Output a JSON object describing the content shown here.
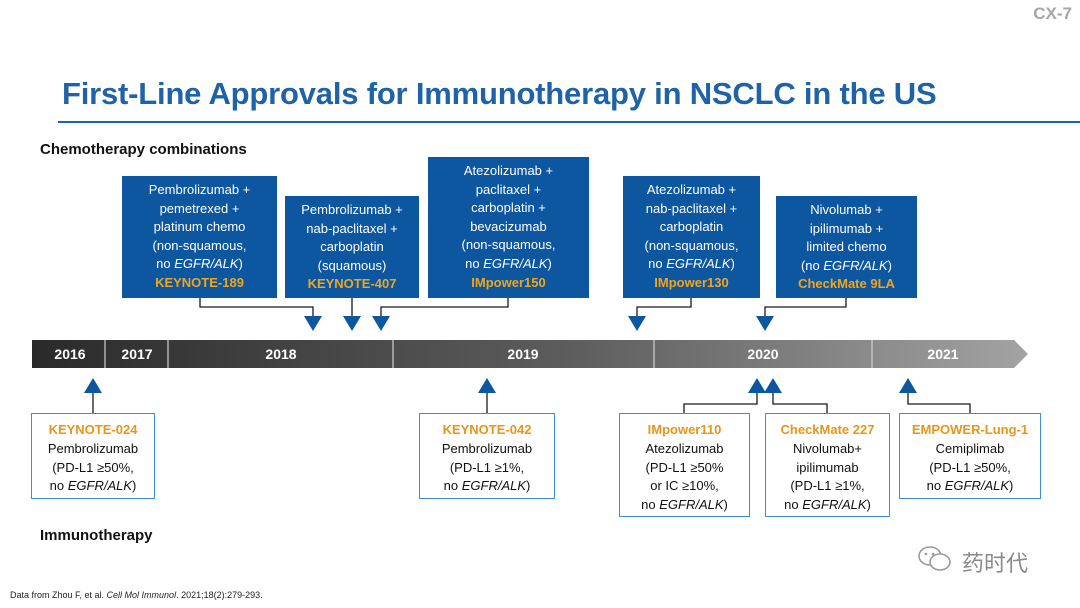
{
  "slide_id": "CX-7",
  "title": "First-Line Approvals for Immunotherapy in NSCLC in the US",
  "sections": {
    "chemo": "Chemotherapy combinations",
    "immuno": "Immunotherapy"
  },
  "timeline": {
    "years": [
      "2016",
      "2017",
      "2018",
      "2019",
      "2020",
      "2021"
    ]
  },
  "chemo_boxes": [
    {
      "lines": [
        "Pembrolizumab +",
        "pemetrexed +",
        "platinum chemo",
        "(non-squamous,",
        "no |EGFR/ALK|)"
      ],
      "trial": "KEYNOTE-189"
    },
    {
      "lines": [
        "Pembrolizumab +",
        "nab-paclitaxel +",
        "carboplatin",
        "(squamous)"
      ],
      "trial": "KEYNOTE-407"
    },
    {
      "lines": [
        "Atezolizumab +",
        "paclitaxel +",
        "carboplatin +",
        "bevacizumab",
        "(non-squamous,",
        "no |EGFR/ALK|)"
      ],
      "trial": "IMpower150"
    },
    {
      "lines": [
        "Atezolizumab +",
        "nab-paclitaxel +",
        "carboplatin",
        "(non-squamous,",
        "no |EGFR/ALK|)"
      ],
      "trial": "IMpower130"
    },
    {
      "lines": [
        "Nivolumab +",
        "ipilimumab +",
        "limited chemo",
        "(no |EGFR/ALK|)"
      ],
      "trial": "CheckMate 9LA"
    }
  ],
  "immuno_boxes": [
    {
      "trial": "KEYNOTE-024",
      "lines": [
        "Pembrolizumab",
        "(PD-L1 ≥50%,",
        "no |EGFR/ALK|)"
      ]
    },
    {
      "trial": "KEYNOTE-042",
      "lines": [
        "Pembrolizumab",
        "(PD-L1 ≥1%,",
        "no |EGFR/ALK|)"
      ]
    },
    {
      "trial": "IMpower110",
      "lines": [
        "Atezolizumab",
        "(PD-L1 ≥50%",
        "or IC ≥10%,",
        "no |EGFR/ALK|)"
      ]
    },
    {
      "trial": "CheckMate 227",
      "lines": [
        "Nivolumab+",
        "ipilimumab",
        "(PD-L1 ≥1%,",
        "no |EGFR/ALK|)"
      ]
    },
    {
      "trial": "EMPOWER-Lung-1",
      "lines": [
        "Cemiplimab",
        "(PD-L1 ≥50%,",
        "no |EGFR/ALK|)"
      ]
    }
  ],
  "footnote": {
    "prefix": "Data from Zhou F, et al. ",
    "journal": "Cell Mol Immunol",
    "suffix": ". 2021;18(2):279-293."
  },
  "watermark": "药时代",
  "colors": {
    "title_blue": "#1f62a7",
    "box_blue": "#0d56a0",
    "trial_orange": "#f3a51a",
    "timeline_dark": "#2d2d2d",
    "timeline_light": "#9a9a9a",
    "arrow_blue": "#0d56a0"
  }
}
